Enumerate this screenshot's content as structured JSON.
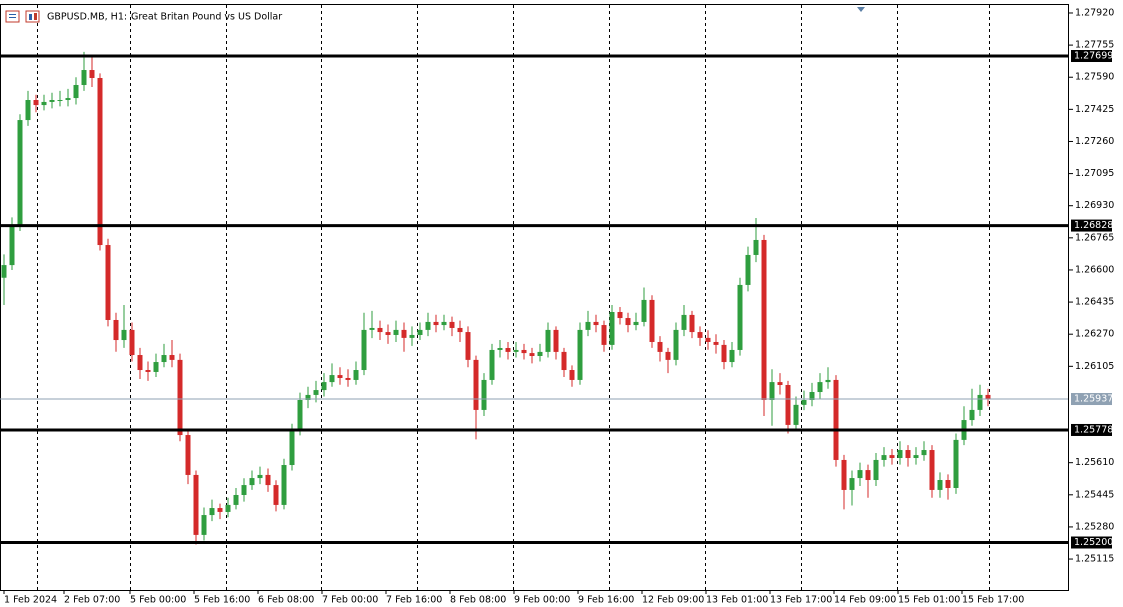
{
  "chart_data": {
    "type": "candlestick",
    "symbol": "GBPUSD.MB, H1:",
    "description": "Great Britan Pound vs US Dollar",
    "up_color": "#2f9e3f",
    "down_color": "#d42a2a",
    "level_color": "#000000",
    "current_price_color": "#8fa1b3",
    "grid": true,
    "xlim": [
      -0.5,
      133
    ],
    "ylim": [
      1.24956,
      1.27961
    ],
    "yticks": [
      {
        "value": 1.2792,
        "label": "1.27920"
      },
      1.27755,
      {
        "value": 1.2759,
        "label": "1.27590"
      },
      1.27425,
      {
        "value": 1.2726,
        "label": "1.27260"
      },
      1.27095,
      {
        "value": 1.2693,
        "label": "1.26930"
      },
      1.26765,
      {
        "value": 1.266,
        "label": "1.26600"
      },
      1.26435,
      {
        "value": 1.2627,
        "label": "1.26270"
      },
      1.26105,
      {
        "value": 1.2561,
        "label": "1.25610"
      },
      1.25445,
      {
        "value": 1.2528,
        "label": "1.25280"
      },
      1.25115
    ],
    "xticks": [
      {
        "value": 0,
        "label": "1 Feb 2024"
      },
      {
        "value": 7.5,
        "label": "2 Feb 07:00"
      },
      {
        "value": 15.75,
        "label": "5 Feb 00:00"
      },
      {
        "value": 23.75,
        "label": "5 Feb 16:00"
      },
      {
        "value": 31.75,
        "label": "6 Feb 08:00"
      },
      {
        "value": 39.75,
        "label": "7 Feb 00:00"
      },
      {
        "value": 47.75,
        "label": "7 Feb 16:00"
      },
      {
        "value": 55.75,
        "label": "8 Feb 08:00"
      },
      {
        "value": 63.75,
        "label": "9 Feb 00:00"
      },
      {
        "value": 71.75,
        "label": "9 Feb 16:00"
      },
      {
        "value": 79.75,
        "label": "12 Feb 09:00"
      },
      {
        "value": 87.75,
        "label": "13 Feb 01:00"
      },
      {
        "value": 95.75,
        "label": "13 Feb 17:00"
      },
      {
        "value": 103.75,
        "label": "14 Feb 09:00"
      },
      {
        "value": 111.75,
        "label": "15 Feb 01:00"
      },
      {
        "value": 119.75,
        "label": "15 Feb 17:00"
      }
    ],
    "levels": [
      1.27699,
      1.26828,
      1.25778,
      {
        "value": 1.252,
        "label": "1.25200"
      }
    ],
    "current_price": 1.25937,
    "ohlc": [
      [
        1.2656,
        1.2668,
        1.2642,
        1.26625
      ],
      [
        1.26625,
        1.2687,
        1.266,
        1.26831
      ],
      [
        1.26831,
        1.274,
        1.268,
        1.2737
      ],
      [
        1.2737,
        1.2752,
        1.2734,
        1.27473
      ],
      [
        1.27473,
        1.275,
        1.2741,
        1.27447
      ],
      [
        1.27447,
        1.275,
        1.2742,
        1.27463
      ],
      [
        1.27463,
        1.2751,
        1.2743,
        1.27473
      ],
      [
        1.27473,
        1.2752,
        1.2744,
        1.27473
      ],
      [
        1.27473,
        1.2753,
        1.2744,
        1.27483
      ],
      [
        1.27483,
        1.2759,
        1.2745,
        1.2755
      ],
      [
        1.2755,
        1.2772,
        1.2752,
        1.27627
      ],
      [
        1.27627,
        1.277,
        1.2754,
        1.27586
      ],
      [
        1.27586,
        1.2761,
        1.267,
        1.26728
      ],
      [
        1.26728,
        1.2676,
        1.2631,
        1.26343
      ],
      [
        1.26343,
        1.2638,
        1.2618,
        1.2624
      ],
      [
        1.2624,
        1.2642,
        1.262,
        1.26292
      ],
      [
        1.26292,
        1.2633,
        1.2613,
        1.26163
      ],
      [
        1.26163,
        1.262,
        1.2604,
        1.26086
      ],
      [
        1.26086,
        1.2613,
        1.2603,
        1.26076
      ],
      [
        1.26076,
        1.2617,
        1.2605,
        1.26127
      ],
      [
        1.26127,
        1.2622,
        1.261,
        1.26163
      ],
      [
        1.26163,
        1.2624,
        1.261,
        1.26138
      ],
      [
        1.26138,
        1.2617,
        1.2572,
        1.25752
      ],
      [
        1.25752,
        1.2578,
        1.255,
        1.25547
      ],
      [
        1.25547,
        1.2557,
        1.2519,
        1.25239
      ],
      [
        1.25239,
        1.2538,
        1.2521,
        1.25341
      ],
      [
        1.25341,
        1.2542,
        1.2531,
        1.25377
      ],
      [
        1.25377,
        1.254,
        1.2532,
        1.25357
      ],
      [
        1.25357,
        1.2543,
        1.2533,
        1.25393
      ],
      [
        1.25393,
        1.2548,
        1.2537,
        1.25444
      ],
      [
        1.25444,
        1.2553,
        1.2541,
        1.25495
      ],
      [
        1.25495,
        1.2557,
        1.2547,
        1.25531
      ],
      [
        1.25531,
        1.2559,
        1.255,
        1.25547
      ],
      [
        1.25547,
        1.2558,
        1.2546,
        1.25495
      ],
      [
        1.25495,
        1.2552,
        1.2536,
        1.25393
      ],
      [
        1.25393,
        1.2563,
        1.2537,
        1.25598
      ],
      [
        1.25598,
        1.2581,
        1.2557,
        1.25778
      ],
      [
        1.25778,
        1.2597,
        1.2575,
        1.25932
      ],
      [
        1.25932,
        1.26,
        1.2589,
        1.25958
      ],
      [
        1.25958,
        1.2603,
        1.2592,
        1.25983
      ],
      [
        1.25983,
        1.2607,
        1.2595,
        1.26024
      ],
      [
        1.26024,
        1.2612,
        1.26,
        1.2606
      ],
      [
        1.2606,
        1.261,
        1.2601,
        1.26045
      ],
      [
        1.26045,
        1.2609,
        1.26,
        1.26035
      ],
      [
        1.26035,
        1.2613,
        1.2601,
        1.26086
      ],
      [
        1.26086,
        1.2638,
        1.2606,
        1.26292
      ],
      [
        1.26292,
        1.2639,
        1.2625,
        1.26302
      ],
      [
        1.26302,
        1.2634,
        1.2624,
        1.26281
      ],
      [
        1.26281,
        1.2632,
        1.2622,
        1.26266
      ],
      [
        1.26266,
        1.2634,
        1.2623,
        1.26292
      ],
      [
        1.26292,
        1.2633,
        1.2618,
        1.26251
      ],
      [
        1.26251,
        1.2631,
        1.2621,
        1.26266
      ],
      [
        1.26266,
        1.2633,
        1.2624,
        1.26292
      ],
      [
        1.26292,
        1.2638,
        1.2626,
        1.26333
      ],
      [
        1.26333,
        1.2637,
        1.2628,
        1.26317
      ],
      [
        1.26317,
        1.2637,
        1.2629,
        1.26333
      ],
      [
        1.26333,
        1.2636,
        1.2626,
        1.26302
      ],
      [
        1.26302,
        1.2634,
        1.2623,
        1.26281
      ],
      [
        1.26281,
        1.2631,
        1.261,
        1.26138
      ],
      [
        1.26138,
        1.2616,
        1.2573,
        1.25881
      ],
      [
        1.25881,
        1.2607,
        1.2585,
        1.26035
      ],
      [
        1.26035,
        1.2622,
        1.2601,
        1.26189
      ],
      [
        1.26189,
        1.2624,
        1.2615,
        1.26199
      ],
      [
        1.26199,
        1.2623,
        1.2614,
        1.26179
      ],
      [
        1.26179,
        1.2623,
        1.2615,
        1.26189
      ],
      [
        1.26189,
        1.2622,
        1.2614,
        1.26173
      ],
      [
        1.26173,
        1.262,
        1.2612,
        1.26158
      ],
      [
        1.26158,
        1.2622,
        1.2613,
        1.26179
      ],
      [
        1.26179,
        1.2633,
        1.2615,
        1.26292
      ],
      [
        1.26292,
        1.2631,
        1.2614,
        1.26179
      ],
      [
        1.26179,
        1.262,
        1.2605,
        1.26086
      ],
      [
        1.26086,
        1.2611,
        1.26,
        1.26035
      ],
      [
        1.26035,
        1.2633,
        1.2601,
        1.26292
      ],
      [
        1.26292,
        1.2639,
        1.2626,
        1.26333
      ],
      [
        1.26333,
        1.2637,
        1.2628,
        1.26317
      ],
      [
        1.26317,
        1.2634,
        1.2618,
        1.26215
      ],
      [
        1.26215,
        1.2642,
        1.2619,
        1.26384
      ],
      [
        1.26384,
        1.2641,
        1.2632,
        1.26353
      ],
      [
        1.26353,
        1.2638,
        1.2628,
        1.26317
      ],
      [
        1.26317,
        1.2638,
        1.2629,
        1.26333
      ],
      [
        1.26333,
        1.2651,
        1.2631,
        1.26446
      ],
      [
        1.26446,
        1.2647,
        1.262,
        1.2623
      ],
      [
        1.2623,
        1.2626,
        1.2613,
        1.26179
      ],
      [
        1.26179,
        1.262,
        1.2607,
        1.26138
      ],
      [
        1.26138,
        1.2633,
        1.2611,
        1.26292
      ],
      [
        1.26292,
        1.2642,
        1.2626,
        1.26369
      ],
      [
        1.26369,
        1.2639,
        1.2625,
        1.26281
      ],
      [
        1.26281,
        1.2631,
        1.2621,
        1.26251
      ],
      [
        1.26251,
        1.2629,
        1.2619,
        1.2623
      ],
      [
        1.2623,
        1.2627,
        1.2617,
        1.26215
      ],
      [
        1.26215,
        1.2624,
        1.2609,
        1.26127
      ],
      [
        1.26127,
        1.2623,
        1.261,
        1.26189
      ],
      [
        1.26189,
        1.2656,
        1.2616,
        1.26523
      ],
      [
        1.26523,
        1.2672,
        1.2649,
        1.26677
      ],
      [
        1.26677,
        1.26867,
        1.2664,
        1.26754
      ],
      [
        1.26754,
        1.2678,
        1.2585,
        1.25932
      ],
      [
        1.25932,
        1.2609,
        1.258,
        1.26024
      ],
      [
        1.26024,
        1.2607,
        1.2596,
        1.26009
      ],
      [
        1.26009,
        1.2603,
        1.2576,
        1.25804
      ],
      [
        1.25804,
        1.2595,
        1.2578,
        1.25907
      ],
      [
        1.25907,
        1.2598,
        1.2588,
        1.25932
      ],
      [
        1.25932,
        1.2602,
        1.259,
        1.25973
      ],
      [
        1.25973,
        1.2607,
        1.2594,
        1.26024
      ],
      [
        1.26024,
        1.261,
        1.2599,
        1.26035
      ],
      [
        1.26035,
        1.2606,
        1.2559,
        1.25624
      ],
      [
        1.25624,
        1.2565,
        1.2537,
        1.2547
      ],
      [
        1.2547,
        1.2557,
        1.2539,
        1.25531
      ],
      [
        1.25531,
        1.2561,
        1.2549,
        1.25572
      ],
      [
        1.25572,
        1.256,
        1.2543,
        1.25521
      ],
      [
        1.25521,
        1.2566,
        1.2549,
        1.25624
      ],
      [
        1.25624,
        1.2569,
        1.2559,
        1.25649
      ],
      [
        1.25649,
        1.2568,
        1.256,
        1.25634
      ],
      [
        1.25634,
        1.2572,
        1.256,
        1.25675
      ],
      [
        1.25675,
        1.257,
        1.2559,
        1.25634
      ],
      [
        1.25634,
        1.2569,
        1.256,
        1.25649
      ],
      [
        1.25649,
        1.2572,
        1.2562,
        1.25675
      ],
      [
        1.25675,
        1.257,
        1.2543,
        1.2547
      ],
      [
        1.2547,
        1.2556,
        1.2543,
        1.25521
      ],
      [
        1.25521,
        1.2555,
        1.2542,
        1.2548
      ],
      [
        1.2548,
        1.2576,
        1.2545,
        1.25727
      ],
      [
        1.25727,
        1.259,
        1.257,
        1.25829
      ],
      [
        1.25829,
        1.2599,
        1.258,
        1.25881
      ],
      [
        1.25881,
        1.2601,
        1.2585,
        1.25958
      ],
      [
        1.25958,
        1.2599,
        1.259,
        1.25937
      ]
    ]
  }
}
